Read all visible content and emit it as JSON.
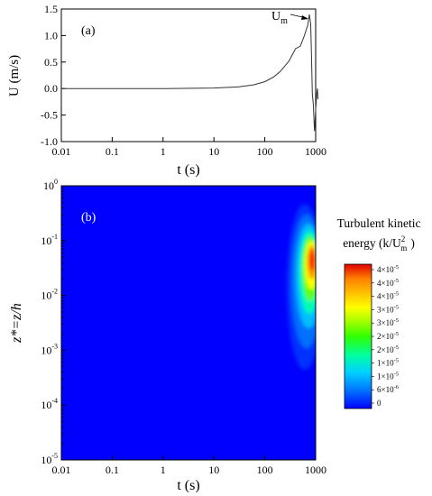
{
  "chart_data": [
    {
      "type": "line",
      "panel_label": "(a)",
      "xlabel": "t (s)",
      "ylabel": "U (m/s)",
      "xscale": "log",
      "xlim": [
        0.01,
        1000
      ],
      "ylim": [
        -1.0,
        1.5
      ],
      "x_ticks": [
        "0.01",
        "0.1",
        "1",
        "10",
        "100",
        "1000"
      ],
      "y_ticks": [
        "-1.0",
        "-0.5",
        "0.0",
        "0.5",
        "1.0",
        "1.5"
      ],
      "annotation": {
        "text": "U",
        "subscript": "m"
      },
      "series": [
        {
          "x": [
            0.01,
            0.1,
            1,
            10,
            30,
            60,
            100,
            150,
            200,
            300,
            400,
            500,
            600,
            700,
            750,
            800,
            830,
            860,
            900,
            950,
            1000,
            1050,
            1080,
            1110
          ],
          "y": [
            0.0,
            0.0,
            0.0,
            0.01,
            0.03,
            0.07,
            0.13,
            0.22,
            0.32,
            0.52,
            0.75,
            0.8,
            1.0,
            1.2,
            1.4,
            1.22,
            0.6,
            -0.1,
            -0.3,
            -0.8,
            -0.4,
            -0.1,
            0.0,
            -0.2
          ]
        }
      ],
      "grid": false
    },
    {
      "type": "heatmap",
      "panel_label": "(b)",
      "xlabel": "t (s)",
      "ylabel": "z*=z/h",
      "xscale": "log",
      "yscale": "log",
      "xlim": [
        0.01,
        1000
      ],
      "ylim": [
        1e-05,
        1
      ],
      "x_ticks": [
        "0.01",
        "0.1",
        "1",
        "10",
        "100",
        "1000"
      ],
      "y_ticks": [
        "10-5",
        "10-4",
        "10-3",
        "10-2",
        "10-1",
        "100"
      ],
      "background_level": 0,
      "peak": {
        "t": 750,
        "z": 0.04,
        "value": 4.5e-05
      },
      "colorbar": {
        "title_line1": "Turbulent kinetic",
        "title_line2": "energy (k/U",
        "title_super": "2",
        "title_sub": "m",
        "title_end": ")",
        "labels": [
          "4×10-5",
          "4×10-5",
          "4×10-5",
          "3×10-5",
          "3×10-5",
          "2×10-5",
          "2×10-5",
          "1×10-5",
          "1×10-5",
          "6×10-6",
          "0"
        ],
        "colors": [
          "#0000ff",
          "#0070ff",
          "#00d0ff",
          "#00ffa0",
          "#30ff00",
          "#a0ff00",
          "#ffff00",
          "#ffc000",
          "#ff8000",
          "#ff3000",
          "#e00000"
        ]
      }
    }
  ]
}
